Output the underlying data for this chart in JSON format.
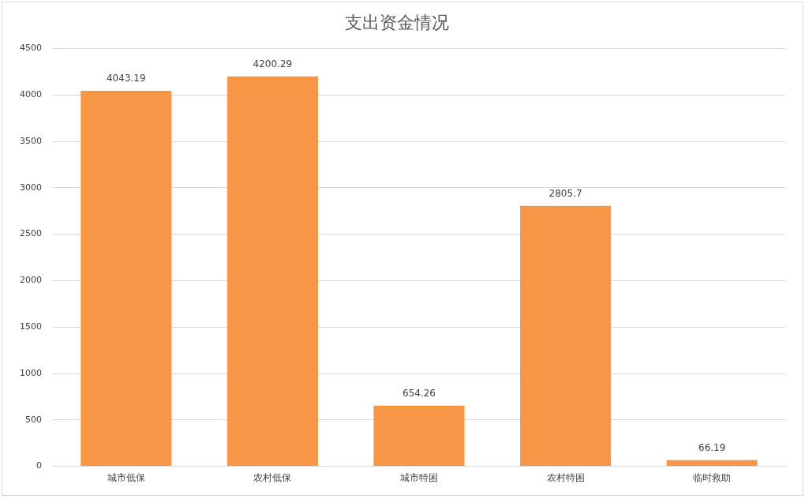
{
  "chart_data": {
    "type": "bar",
    "title": "支出资金情况",
    "categories": [
      "城市低保",
      "农村低保",
      "城市特困",
      "农村特困",
      "临时救助"
    ],
    "values": [
      4043.19,
      4200.29,
      654.26,
      2805.7,
      66.19
    ],
    "color": "#f79646",
    "ylim": [
      0,
      4500
    ],
    "yticks": [
      0,
      500,
      1000,
      1500,
      2000,
      2500,
      3000,
      3500,
      4000,
      4500
    ],
    "grid": "y",
    "legend": false,
    "data_labels": true
  }
}
